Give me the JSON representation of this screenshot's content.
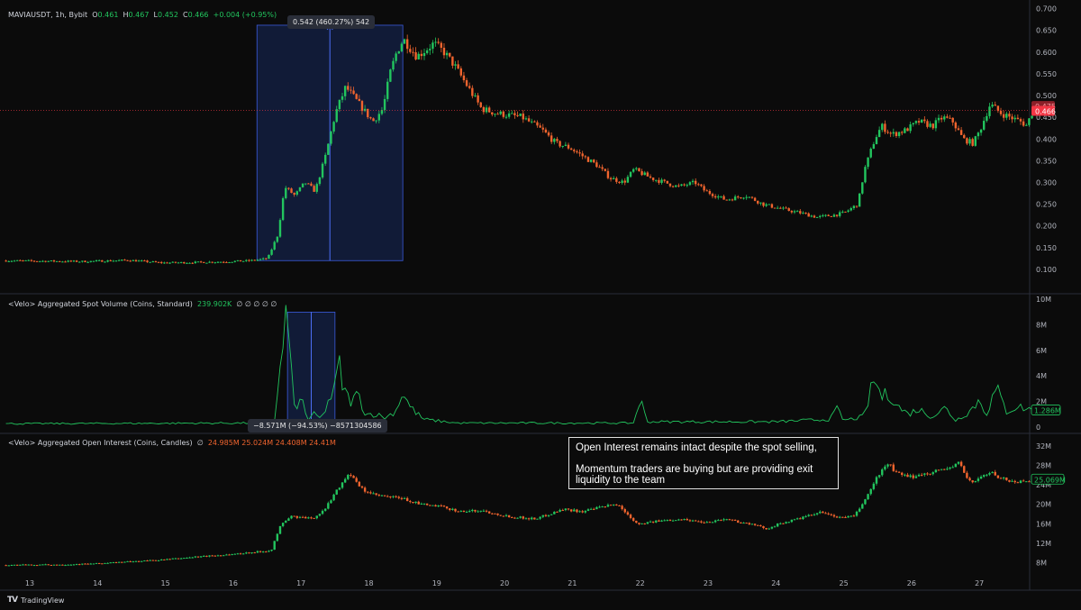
{
  "legends": {
    "price": {
      "symbol": "MAVIAUSDT, 1h, Bybit",
      "o_label": "O",
      "o": "0.461",
      "h_label": "H",
      "h": "0.467",
      "l_label": "L",
      "l": "0.452",
      "c_label": "C",
      "c": "0.466",
      "change": "+0.004 (+0.95%)"
    },
    "volume": {
      "title": "<Velo> Aggregated Spot Volume (Coins, Standard)",
      "value": "239.902K",
      "nulls": "∅ ∅ ∅ ∅ ∅"
    },
    "oi": {
      "title": "<Velo> Aggregated Open Interest (Coins, Candles)",
      "null": "∅",
      "values": "24.985M  25.024M  24.408M  24.41M"
    }
  },
  "measures": {
    "price": "0.542 (460.27%) 542",
    "volume": "−8.571M (−94.53%) −8571304586"
  },
  "annotation": {
    "line1": "Open Interest remains intact despite the spot selling,",
    "line2": "Momentum traders are buying but are providing exit liquidity to the team"
  },
  "branding": {
    "logo": "TV",
    "name": "TradingView"
  },
  "colors": {
    "up": "#22c55e",
    "down": "#f0642e",
    "volume_line": "#22c55e",
    "measure_box": "#1e3a8a",
    "last_price": "#f23645",
    "grid": "#1c1c1c"
  },
  "chart_data": {
    "type": "line",
    "x_axis": {
      "ticks": [
        "13",
        "14",
        "15",
        "16",
        "17",
        "18",
        "19",
        "20",
        "21",
        "22",
        "23",
        "24",
        "25",
        "26",
        "27"
      ]
    },
    "panels": [
      {
        "name": "price",
        "ylim": [
          0.05,
          0.72
        ],
        "yticks": [
          "0.700",
          "0.650",
          "0.600",
          "0.550",
          "0.500",
          "0.450",
          "0.400",
          "0.350",
          "0.300",
          "0.250",
          "0.200",
          "0.150",
          "0.100"
        ],
        "price_line": 0.466,
        "last_price_labels": [
          "0.475",
          "0.466"
        ],
        "keypoints": [
          [
            12.65,
            0.12
          ],
          [
            13.8,
            0.118
          ],
          [
            14.5,
            0.121
          ],
          [
            15.0,
            0.115
          ],
          [
            15.5,
            0.116
          ],
          [
            16.0,
            0.118
          ],
          [
            16.3,
            0.12
          ],
          [
            16.55,
            0.125
          ],
          [
            16.7,
            0.18
          ],
          [
            16.8,
            0.29
          ],
          [
            16.95,
            0.27
          ],
          [
            17.1,
            0.3
          ],
          [
            17.25,
            0.28
          ],
          [
            17.4,
            0.36
          ],
          [
            17.55,
            0.46
          ],
          [
            17.7,
            0.52
          ],
          [
            17.85,
            0.49
          ],
          [
            18.0,
            0.46
          ],
          [
            18.1,
            0.44
          ],
          [
            18.25,
            0.47
          ],
          [
            18.35,
            0.55
          ],
          [
            18.45,
            0.6
          ],
          [
            18.55,
            0.63
          ],
          [
            18.75,
            0.59
          ],
          [
            19.0,
            0.62
          ],
          [
            19.15,
            0.6
          ],
          [
            19.3,
            0.57
          ],
          [
            19.5,
            0.52
          ],
          [
            19.7,
            0.47
          ],
          [
            19.9,
            0.46
          ],
          [
            20.3,
            0.45
          ],
          [
            20.6,
            0.42
          ],
          [
            20.8,
            0.39
          ],
          [
            21.0,
            0.38
          ],
          [
            21.2,
            0.36
          ],
          [
            21.4,
            0.34
          ],
          [
            21.6,
            0.31
          ],
          [
            21.8,
            0.3
          ],
          [
            21.95,
            0.33
          ],
          [
            22.2,
            0.31
          ],
          [
            22.4,
            0.3
          ],
          [
            22.6,
            0.29
          ],
          [
            22.85,
            0.3
          ],
          [
            23.0,
            0.28
          ],
          [
            23.3,
            0.26
          ],
          [
            23.6,
            0.27
          ],
          [
            23.85,
            0.25
          ],
          [
            24.1,
            0.24
          ],
          [
            24.4,
            0.23
          ],
          [
            24.65,
            0.22
          ],
          [
            24.9,
            0.225
          ],
          [
            25.05,
            0.23
          ],
          [
            25.25,
            0.25
          ],
          [
            25.35,
            0.33
          ],
          [
            25.5,
            0.4
          ],
          [
            25.6,
            0.43
          ],
          [
            25.75,
            0.41
          ],
          [
            25.95,
            0.42
          ],
          [
            26.15,
            0.44
          ],
          [
            26.35,
            0.43
          ],
          [
            26.5,
            0.45
          ],
          [
            26.65,
            0.44
          ],
          [
            26.8,
            0.4
          ],
          [
            26.95,
            0.39
          ],
          [
            27.05,
            0.42
          ],
          [
            27.2,
            0.48
          ],
          [
            27.35,
            0.46
          ],
          [
            27.5,
            0.45
          ],
          [
            27.65,
            0.44
          ],
          [
            27.75,
            0.43
          ],
          [
            27.8,
            0.46
          ]
        ]
      },
      {
        "name": "spot_volume",
        "ylim": [
          -0.3,
          10.3
        ],
        "unit": "M",
        "yticks": [
          "10M",
          "8M",
          "6M",
          "4M",
          "2M",
          "0"
        ],
        "last_value_label": "1.286M",
        "keypoints": [
          [
            12.65,
            0.25
          ],
          [
            16.4,
            0.3
          ],
          [
            16.62,
            0.5
          ],
          [
            16.72,
            6.0
          ],
          [
            16.79,
            9.0
          ],
          [
            16.87,
            3.0
          ],
          [
            16.95,
            1.0
          ],
          [
            17.0,
            2.5
          ],
          [
            17.1,
            0.5
          ],
          [
            17.2,
            1.0
          ],
          [
            17.3,
            0.6
          ],
          [
            17.4,
            2.0
          ],
          [
            17.5,
            2.8
          ],
          [
            17.55,
            5.2
          ],
          [
            17.62,
            3.0
          ],
          [
            17.72,
            2.0
          ],
          [
            17.85,
            2.5
          ],
          [
            17.95,
            1.0
          ],
          [
            18.1,
            1.0
          ],
          [
            18.25,
            0.7
          ],
          [
            18.4,
            1.3
          ],
          [
            18.5,
            2.8
          ],
          [
            18.6,
            1.6
          ],
          [
            18.8,
            0.6
          ],
          [
            19.3,
            0.3
          ],
          [
            20.5,
            0.3
          ],
          [
            21.0,
            0.3
          ],
          [
            21.9,
            0.3
          ],
          [
            22.0,
            2.2
          ],
          [
            22.1,
            0.4
          ],
          [
            23.0,
            0.4
          ],
          [
            24.0,
            0.4
          ],
          [
            24.8,
            0.6
          ],
          [
            24.9,
            1.4
          ],
          [
            25.0,
            0.5
          ],
          [
            25.3,
            0.8
          ],
          [
            25.45,
            3.8
          ],
          [
            25.55,
            2.4
          ],
          [
            25.7,
            2.5
          ],
          [
            25.8,
            1.6
          ],
          [
            25.95,
            1.0
          ],
          [
            26.1,
            1.4
          ],
          [
            26.3,
            0.8
          ],
          [
            26.5,
            1.5
          ],
          [
            26.65,
            0.5
          ],
          [
            26.85,
            1.2
          ],
          [
            27.0,
            2.1
          ],
          [
            27.1,
            1.0
          ],
          [
            27.25,
            3.0
          ],
          [
            27.4,
            1.2
          ],
          [
            27.55,
            1.6
          ],
          [
            27.8,
            1.3
          ]
        ]
      },
      {
        "name": "open_interest",
        "ylim": [
          5.5,
          34.0
        ],
        "unit": "M",
        "yticks": [
          "32M",
          "28M",
          "24M",
          "20M",
          "16M",
          "12M",
          "8M"
        ],
        "last_value_label": "25.069M",
        "keypoints": [
          [
            12.65,
            7.5
          ],
          [
            13.5,
            7.6
          ],
          [
            14.0,
            7.8
          ],
          [
            15.0,
            8.6
          ],
          [
            15.5,
            9.2
          ],
          [
            16.0,
            9.7
          ],
          [
            16.6,
            10.5
          ],
          [
            16.75,
            16.0
          ],
          [
            16.9,
            17.5
          ],
          [
            17.2,
            17.0
          ],
          [
            17.4,
            19.0
          ],
          [
            17.5,
            21.5
          ],
          [
            17.65,
            24.5
          ],
          [
            17.75,
            26.5
          ],
          [
            17.85,
            24.5
          ],
          [
            17.95,
            23.0
          ],
          [
            18.1,
            22.0
          ],
          [
            18.3,
            21.5
          ],
          [
            18.5,
            21.3
          ],
          [
            18.8,
            20.0
          ],
          [
            19.1,
            19.5
          ],
          [
            19.4,
            18.5
          ],
          [
            19.7,
            18.7
          ],
          [
            20.1,
            17.5
          ],
          [
            20.5,
            17.0
          ],
          [
            20.9,
            19.0
          ],
          [
            21.2,
            18.5
          ],
          [
            21.5,
            19.5
          ],
          [
            21.7,
            20.0
          ],
          [
            22.0,
            16.0
          ],
          [
            22.3,
            16.5
          ],
          [
            22.6,
            17.0
          ],
          [
            23.0,
            16.3
          ],
          [
            23.3,
            17.0
          ],
          [
            23.7,
            15.8
          ],
          [
            23.9,
            15.0
          ],
          [
            24.1,
            16.0
          ],
          [
            24.5,
            17.5
          ],
          [
            24.75,
            18.5
          ],
          [
            24.9,
            17.3
          ],
          [
            25.2,
            17.5
          ],
          [
            25.4,
            22.0
          ],
          [
            25.55,
            26.0
          ],
          [
            25.7,
            28.5
          ],
          [
            25.8,
            26.5
          ],
          [
            26.0,
            25.5
          ],
          [
            26.3,
            26.5
          ],
          [
            26.6,
            27.5
          ],
          [
            26.75,
            28.5
          ],
          [
            26.85,
            25.5
          ],
          [
            26.95,
            24.5
          ],
          [
            27.05,
            25.5
          ],
          [
            27.2,
            26.5
          ],
          [
            27.35,
            25.5
          ],
          [
            27.55,
            24.5
          ],
          [
            27.8,
            25.0
          ]
        ]
      }
    ],
    "measure_price": {
      "x_from": 16.35,
      "x_to": 18.5,
      "y_from": 0.12,
      "y_to": 0.662
    },
    "measure_volume": {
      "x_from": 16.8,
      "x_to": 17.5,
      "y_from": 0.5,
      "y_to": 9.0
    }
  }
}
